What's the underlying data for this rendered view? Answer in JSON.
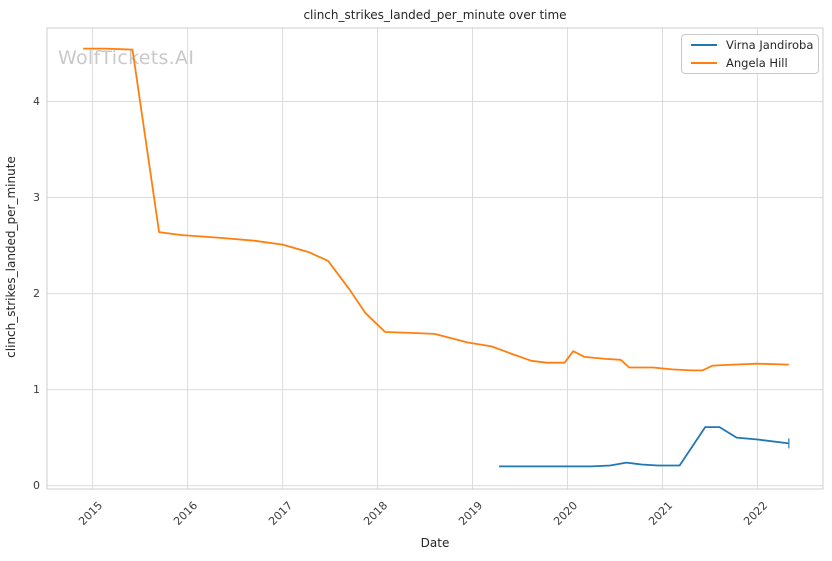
{
  "title": "clinch_strikes_landed_per_minute over time",
  "watermark": "WolfTickets.AI",
  "axes": {
    "xlabel": "Date",
    "ylabel": "clinch_strikes_landed_per_minute"
  },
  "legend": {
    "items": [
      {
        "label": "Virna Jandiroba",
        "color": "#1f77b4"
      },
      {
        "label": "Angela Hill",
        "color": "#ff7f0e"
      }
    ]
  },
  "colors": {
    "background": "#ffffff",
    "grid": "#dcdcdc",
    "spine": "#cfcfcf",
    "text": "#262626",
    "tick_text": "#3b3b3b",
    "watermark": "#c9c9c9",
    "series_blue": "#1f77b4",
    "series_orange": "#ff7f0e"
  },
  "chart_data": {
    "type": "line",
    "title": "clinch_strikes_landed_per_minute over time",
    "xlabel": "Date",
    "ylabel": "clinch_strikes_landed_per_minute",
    "xlim": [
      2014.52,
      2022.69
    ],
    "ylim": [
      -0.035,
      4.765
    ],
    "xticks": [
      2015,
      2016,
      2017,
      2018,
      2019,
      2020,
      2021,
      2022
    ],
    "yticks": [
      0,
      1,
      2,
      3,
      4
    ],
    "grid": true,
    "legend_position": "upper right",
    "series": [
      {
        "name": "Virna Jandiroba",
        "color": "#1f77b4",
        "end_marker": "vline",
        "points": [
          [
            2019.28,
            0.2
          ],
          [
            2019.5,
            0.2
          ],
          [
            2019.75,
            0.2
          ],
          [
            2020.0,
            0.2
          ],
          [
            2020.25,
            0.2
          ],
          [
            2020.45,
            0.21
          ],
          [
            2020.62,
            0.24
          ],
          [
            2020.78,
            0.22
          ],
          [
            2020.95,
            0.21
          ],
          [
            2021.18,
            0.21
          ],
          [
            2021.45,
            0.61
          ],
          [
            2021.6,
            0.61
          ],
          [
            2021.78,
            0.5
          ],
          [
            2022.0,
            0.48
          ],
          [
            2022.33,
            0.44
          ]
        ]
      },
      {
        "name": "Angela Hill",
        "color": "#ff7f0e",
        "end_marker": "none",
        "points": [
          [
            2014.9,
            4.55
          ],
          [
            2015.13,
            4.55
          ],
          [
            2015.42,
            4.54
          ],
          [
            2015.7,
            2.64
          ],
          [
            2015.93,
            2.61
          ],
          [
            2016.35,
            2.58
          ],
          [
            2016.7,
            2.55
          ],
          [
            2017.0,
            2.51
          ],
          [
            2017.28,
            2.43
          ],
          [
            2017.48,
            2.34
          ],
          [
            2017.7,
            2.05
          ],
          [
            2017.87,
            1.8
          ],
          [
            2018.08,
            1.6
          ],
          [
            2018.35,
            1.59
          ],
          [
            2018.6,
            1.58
          ],
          [
            2018.95,
            1.49
          ],
          [
            2019.2,
            1.45
          ],
          [
            2019.42,
            1.37
          ],
          [
            2019.62,
            1.3
          ],
          [
            2019.78,
            1.28
          ],
          [
            2019.97,
            1.28
          ],
          [
            2020.06,
            1.4
          ],
          [
            2020.18,
            1.34
          ],
          [
            2020.4,
            1.32
          ],
          [
            2020.56,
            1.31
          ],
          [
            2020.65,
            1.23
          ],
          [
            2020.9,
            1.23
          ],
          [
            2021.1,
            1.21
          ],
          [
            2021.3,
            1.2
          ],
          [
            2021.42,
            1.2
          ],
          [
            2021.53,
            1.25
          ],
          [
            2021.75,
            1.26
          ],
          [
            2022.0,
            1.27
          ],
          [
            2022.33,
            1.26
          ]
        ]
      }
    ]
  }
}
